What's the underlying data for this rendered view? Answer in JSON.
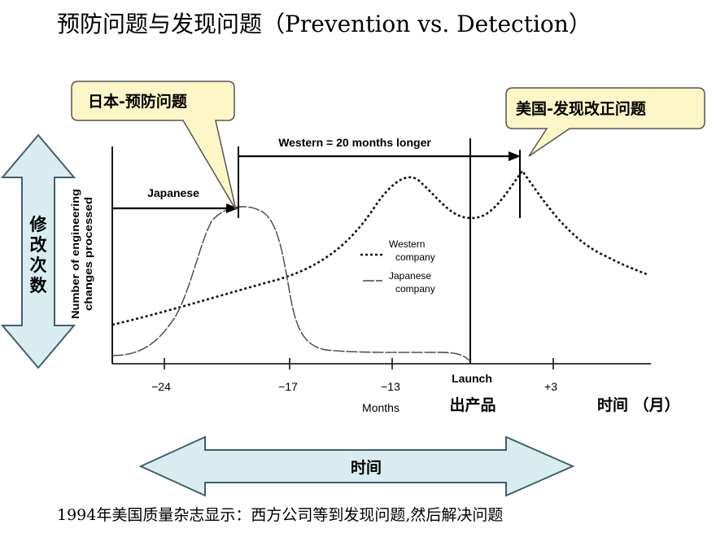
{
  "title": "预防问题与发现问题（Prevention vs. Detection）",
  "callouts": {
    "japan": "日本-预防问题",
    "usa": "美国-发现改正问题"
  },
  "left_arrow_label": [
    "修",
    "改",
    "次",
    "数"
  ],
  "y_axis_label": [
    "Number of engineering",
    "changes processed"
  ],
  "span_label": "Western = 20 months longer",
  "japanese_label": "Japanese",
  "legend": {
    "western": [
      "Western",
      "company"
    ],
    "japanese": [
      "Japanese",
      "company"
    ]
  },
  "x_ticks": [
    "−24",
    "−17",
    "−13",
    "Launch",
    "+3"
  ],
  "x_label": "Months",
  "launch_cn": "出产品",
  "time_unit_cn": "时间 （月）",
  "bottom_arrow_label": "时间",
  "footer": "1994年美国质量杂志显示：西方公司等到发现问题,然后解决问题",
  "colors": {
    "callout_fill": "#fdf6c6",
    "arrow_fill": "#d9ecf0",
    "arrow_stroke": "#3f5f6f"
  }
}
